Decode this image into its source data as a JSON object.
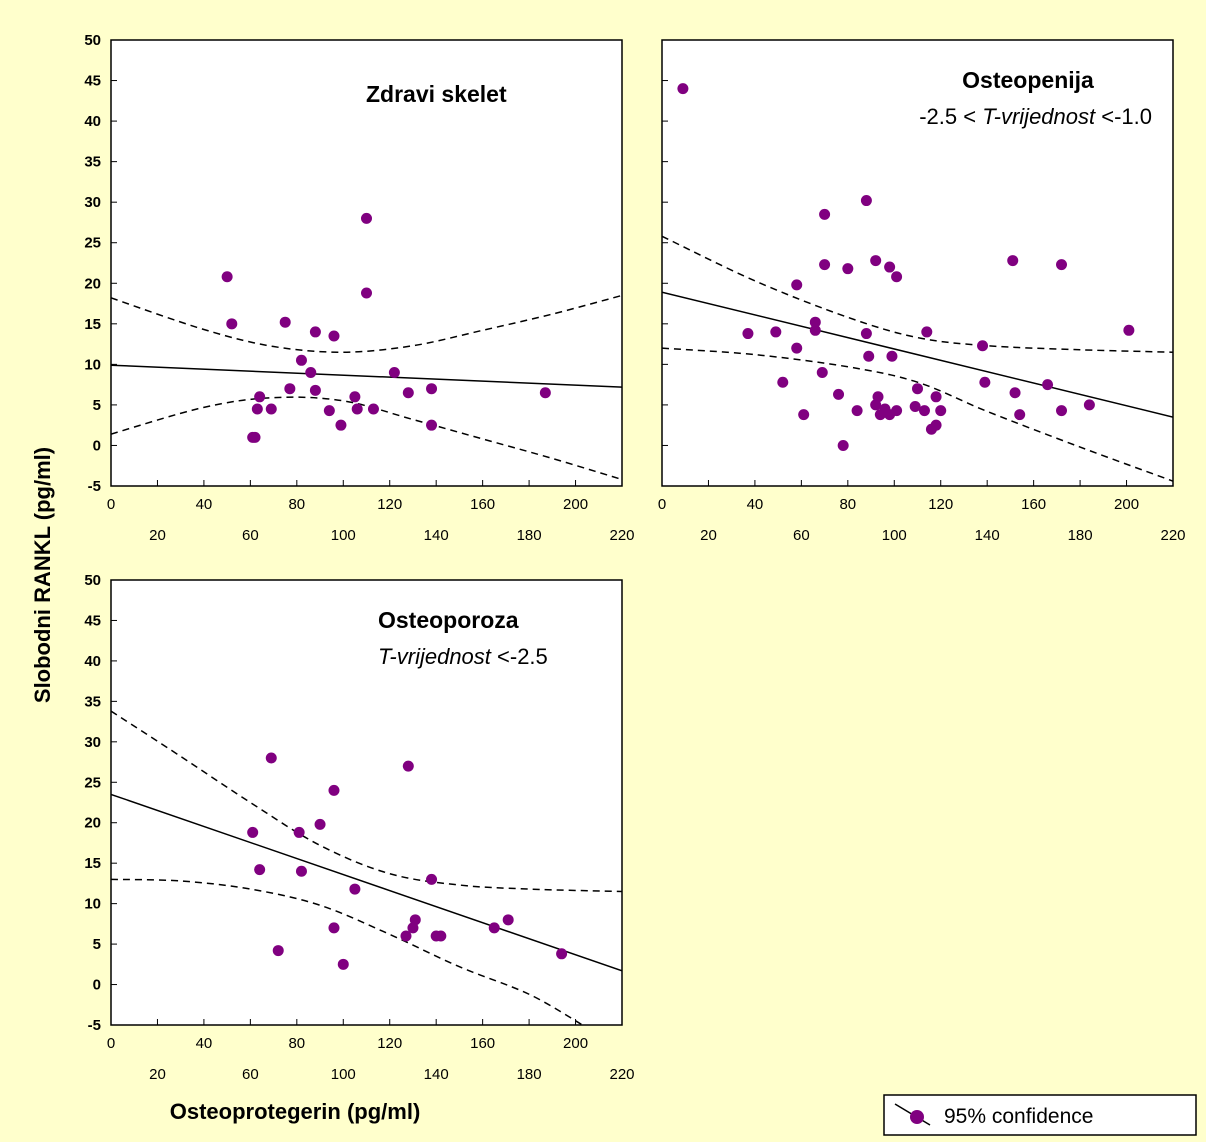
{
  "figure": {
    "ylabel": "Slobodni RANKL (pg/ml)",
    "xlabel": "Osteoprotegerin (pg/ml)",
    "legend": {
      "label": "95% confidence",
      "placement": "bottom-right"
    },
    "background_color": "#FFFFCC",
    "point_color": "#800080"
  },
  "chart_data": [
    {
      "type": "scatter",
      "title": "Zdravi skelet",
      "subtitle_plain": "",
      "subtitle_italic": "",
      "subtitle_tail": "",
      "xlim": [
        0,
        220
      ],
      "ylim": [
        -5,
        50
      ],
      "x_ticks_upper": [
        "0",
        "40",
        "80",
        "120",
        "160",
        "200"
      ],
      "x_ticks_lower": [
        "20",
        "60",
        "100",
        "140",
        "180",
        "220"
      ],
      "y_ticks": [
        "50",
        "45",
        "40",
        "35",
        "30",
        "25",
        "20",
        "15",
        "10",
        "5",
        "0",
        "-5"
      ],
      "show_y_tick_labels": true,
      "points": [
        [
          50,
          20.8
        ],
        [
          52,
          15
        ],
        [
          61,
          1
        ],
        [
          62,
          1
        ],
        [
          63,
          4.5
        ],
        [
          64,
          6
        ],
        [
          69,
          4.5
        ],
        [
          75,
          15.2
        ],
        [
          77,
          7
        ],
        [
          82,
          10.5
        ],
        [
          86,
          9
        ],
        [
          88,
          14
        ],
        [
          88,
          6.8
        ],
        [
          94,
          4.3
        ],
        [
          96,
          13.5
        ],
        [
          99,
          2.5
        ],
        [
          105,
          6
        ],
        [
          106,
          4.5
        ],
        [
          110,
          28
        ],
        [
          110,
          18.8
        ],
        [
          113,
          4.5
        ],
        [
          122,
          9
        ],
        [
          128,
          6.5
        ],
        [
          138,
          7
        ],
        [
          138,
          2.5
        ],
        [
          187,
          6.5
        ]
      ],
      "regression": {
        "x": [
          0,
          220
        ],
        "y": [
          9.9,
          7.2
        ]
      },
      "ci_upper": {
        "x": [
          0,
          40,
          70,
          100,
          130,
          160,
          190,
          220
        ],
        "y": [
          18.2,
          14.3,
          12.2,
          11.5,
          12.3,
          14.2,
          16.2,
          18.5
        ]
      },
      "ci_lower": {
        "x": [
          0,
          40,
          70,
          100,
          130,
          160,
          190,
          220
        ],
        "y": [
          1.4,
          4.7,
          5.9,
          5.5,
          3.2,
          0.8,
          -1.6,
          -4.2
        ]
      }
    },
    {
      "type": "scatter",
      "title": "Osteopenija",
      "subtitle_plain": "-2.5 < ",
      "subtitle_italic": "T-vrijednost",
      "subtitle_tail": " <-1.0",
      "xlim": [
        0,
        220
      ],
      "ylim": [
        -5,
        50
      ],
      "x_ticks_upper": [
        "0",
        "40",
        "80",
        "120",
        "160",
        "200"
      ],
      "x_ticks_lower": [
        "20",
        "60",
        "100",
        "140",
        "180",
        "220"
      ],
      "y_ticks": [
        "50",
        "45",
        "40",
        "35",
        "30",
        "25",
        "20",
        "15",
        "10",
        "5",
        "0",
        "-5"
      ],
      "show_y_tick_labels": false,
      "points": [
        [
          9,
          44
        ],
        [
          37,
          13.8
        ],
        [
          49,
          14
        ],
        [
          52,
          7.8
        ],
        [
          58,
          19.8
        ],
        [
          58,
          12
        ],
        [
          61,
          3.8
        ],
        [
          66,
          15.2
        ],
        [
          66,
          14.2
        ],
        [
          69,
          9
        ],
        [
          70,
          28.5
        ],
        [
          70,
          22.3
        ],
        [
          76,
          6.3
        ],
        [
          78,
          0
        ],
        [
          80,
          21.8
        ],
        [
          84,
          4.3
        ],
        [
          88,
          30.2
        ],
        [
          88,
          13.8
        ],
        [
          89,
          11
        ],
        [
          92,
          22.8
        ],
        [
          92,
          5
        ],
        [
          93,
          6
        ],
        [
          94,
          3.8
        ],
        [
          96,
          4.5
        ],
        [
          98,
          22
        ],
        [
          98,
          3.8
        ],
        [
          99,
          11
        ],
        [
          101,
          20.8
        ],
        [
          101,
          4.3
        ],
        [
          109,
          4.8
        ],
        [
          110,
          7
        ],
        [
          113,
          4.3
        ],
        [
          114,
          14
        ],
        [
          116,
          2
        ],
        [
          118,
          6
        ],
        [
          118,
          2.5
        ],
        [
          120,
          4.3
        ],
        [
          138,
          12.3
        ],
        [
          139,
          7.8
        ],
        [
          151,
          22.8
        ],
        [
          152,
          6.5
        ],
        [
          154,
          3.8
        ],
        [
          166,
          7.5
        ],
        [
          172,
          22.3
        ],
        [
          172,
          4.3
        ],
        [
          184,
          5
        ],
        [
          201,
          14.2
        ]
      ],
      "regression": {
        "x": [
          0,
          220
        ],
        "y": [
          18.9,
          3.5
        ]
      },
      "ci_upper": {
        "x": [
          0,
          40,
          80,
          110,
          140,
          180,
          220
        ],
        "y": [
          25.8,
          20.3,
          15.8,
          13.3,
          12.3,
          11.8,
          11.5
        ]
      },
      "ci_lower": {
        "x": [
          0,
          40,
          80,
          110,
          140,
          180,
          220
        ],
        "y": [
          12,
          11.2,
          9.7,
          7.8,
          4.2,
          -0.2,
          -4.4
        ]
      }
    },
    {
      "type": "scatter",
      "title": "Osteoporoza",
      "subtitle_plain": "",
      "subtitle_italic": "T-vrijednost",
      "subtitle_tail": " <-2.5",
      "xlim": [
        0,
        220
      ],
      "ylim": [
        -5,
        50
      ],
      "x_ticks_upper": [
        "0",
        "40",
        "80",
        "120",
        "160",
        "200"
      ],
      "x_ticks_lower": [
        "20",
        "60",
        "100",
        "140",
        "180",
        "220"
      ],
      "y_ticks": [
        "50",
        "45",
        "40",
        "35",
        "30",
        "25",
        "20",
        "15",
        "10",
        "5",
        "0",
        "-5"
      ],
      "show_y_tick_labels": true,
      "points": [
        [
          61,
          18.8
        ],
        [
          64,
          14.2
        ],
        [
          69,
          28
        ],
        [
          72,
          4.2
        ],
        [
          81,
          18.8
        ],
        [
          82,
          14
        ],
        [
          90,
          19.8
        ],
        [
          96,
          24
        ],
        [
          96,
          7
        ],
        [
          100,
          2.5
        ],
        [
          105,
          11.8
        ],
        [
          127,
          6
        ],
        [
          128,
          27
        ],
        [
          130,
          7
        ],
        [
          131,
          8
        ],
        [
          138,
          13
        ],
        [
          140,
          6
        ],
        [
          142,
          6
        ],
        [
          165,
          7
        ],
        [
          171,
          8
        ],
        [
          194,
          3.8
        ]
      ],
      "regression": {
        "x": [
          0,
          220
        ],
        "y": [
          23.5,
          1.7
        ]
      },
      "ci_upper": {
        "x": [
          0,
          30,
          60,
          90,
          120,
          150,
          180,
          220
        ],
        "y": [
          33.8,
          28.2,
          22.5,
          17.2,
          13.7,
          12.3,
          11.8,
          11.5
        ]
      },
      "ci_lower": {
        "x": [
          0,
          30,
          60,
          90,
          120,
          150,
          180,
          203
        ],
        "y": [
          13,
          12.8,
          11.8,
          9.8,
          6.2,
          2.2,
          -1.2,
          -5
        ]
      }
    }
  ]
}
